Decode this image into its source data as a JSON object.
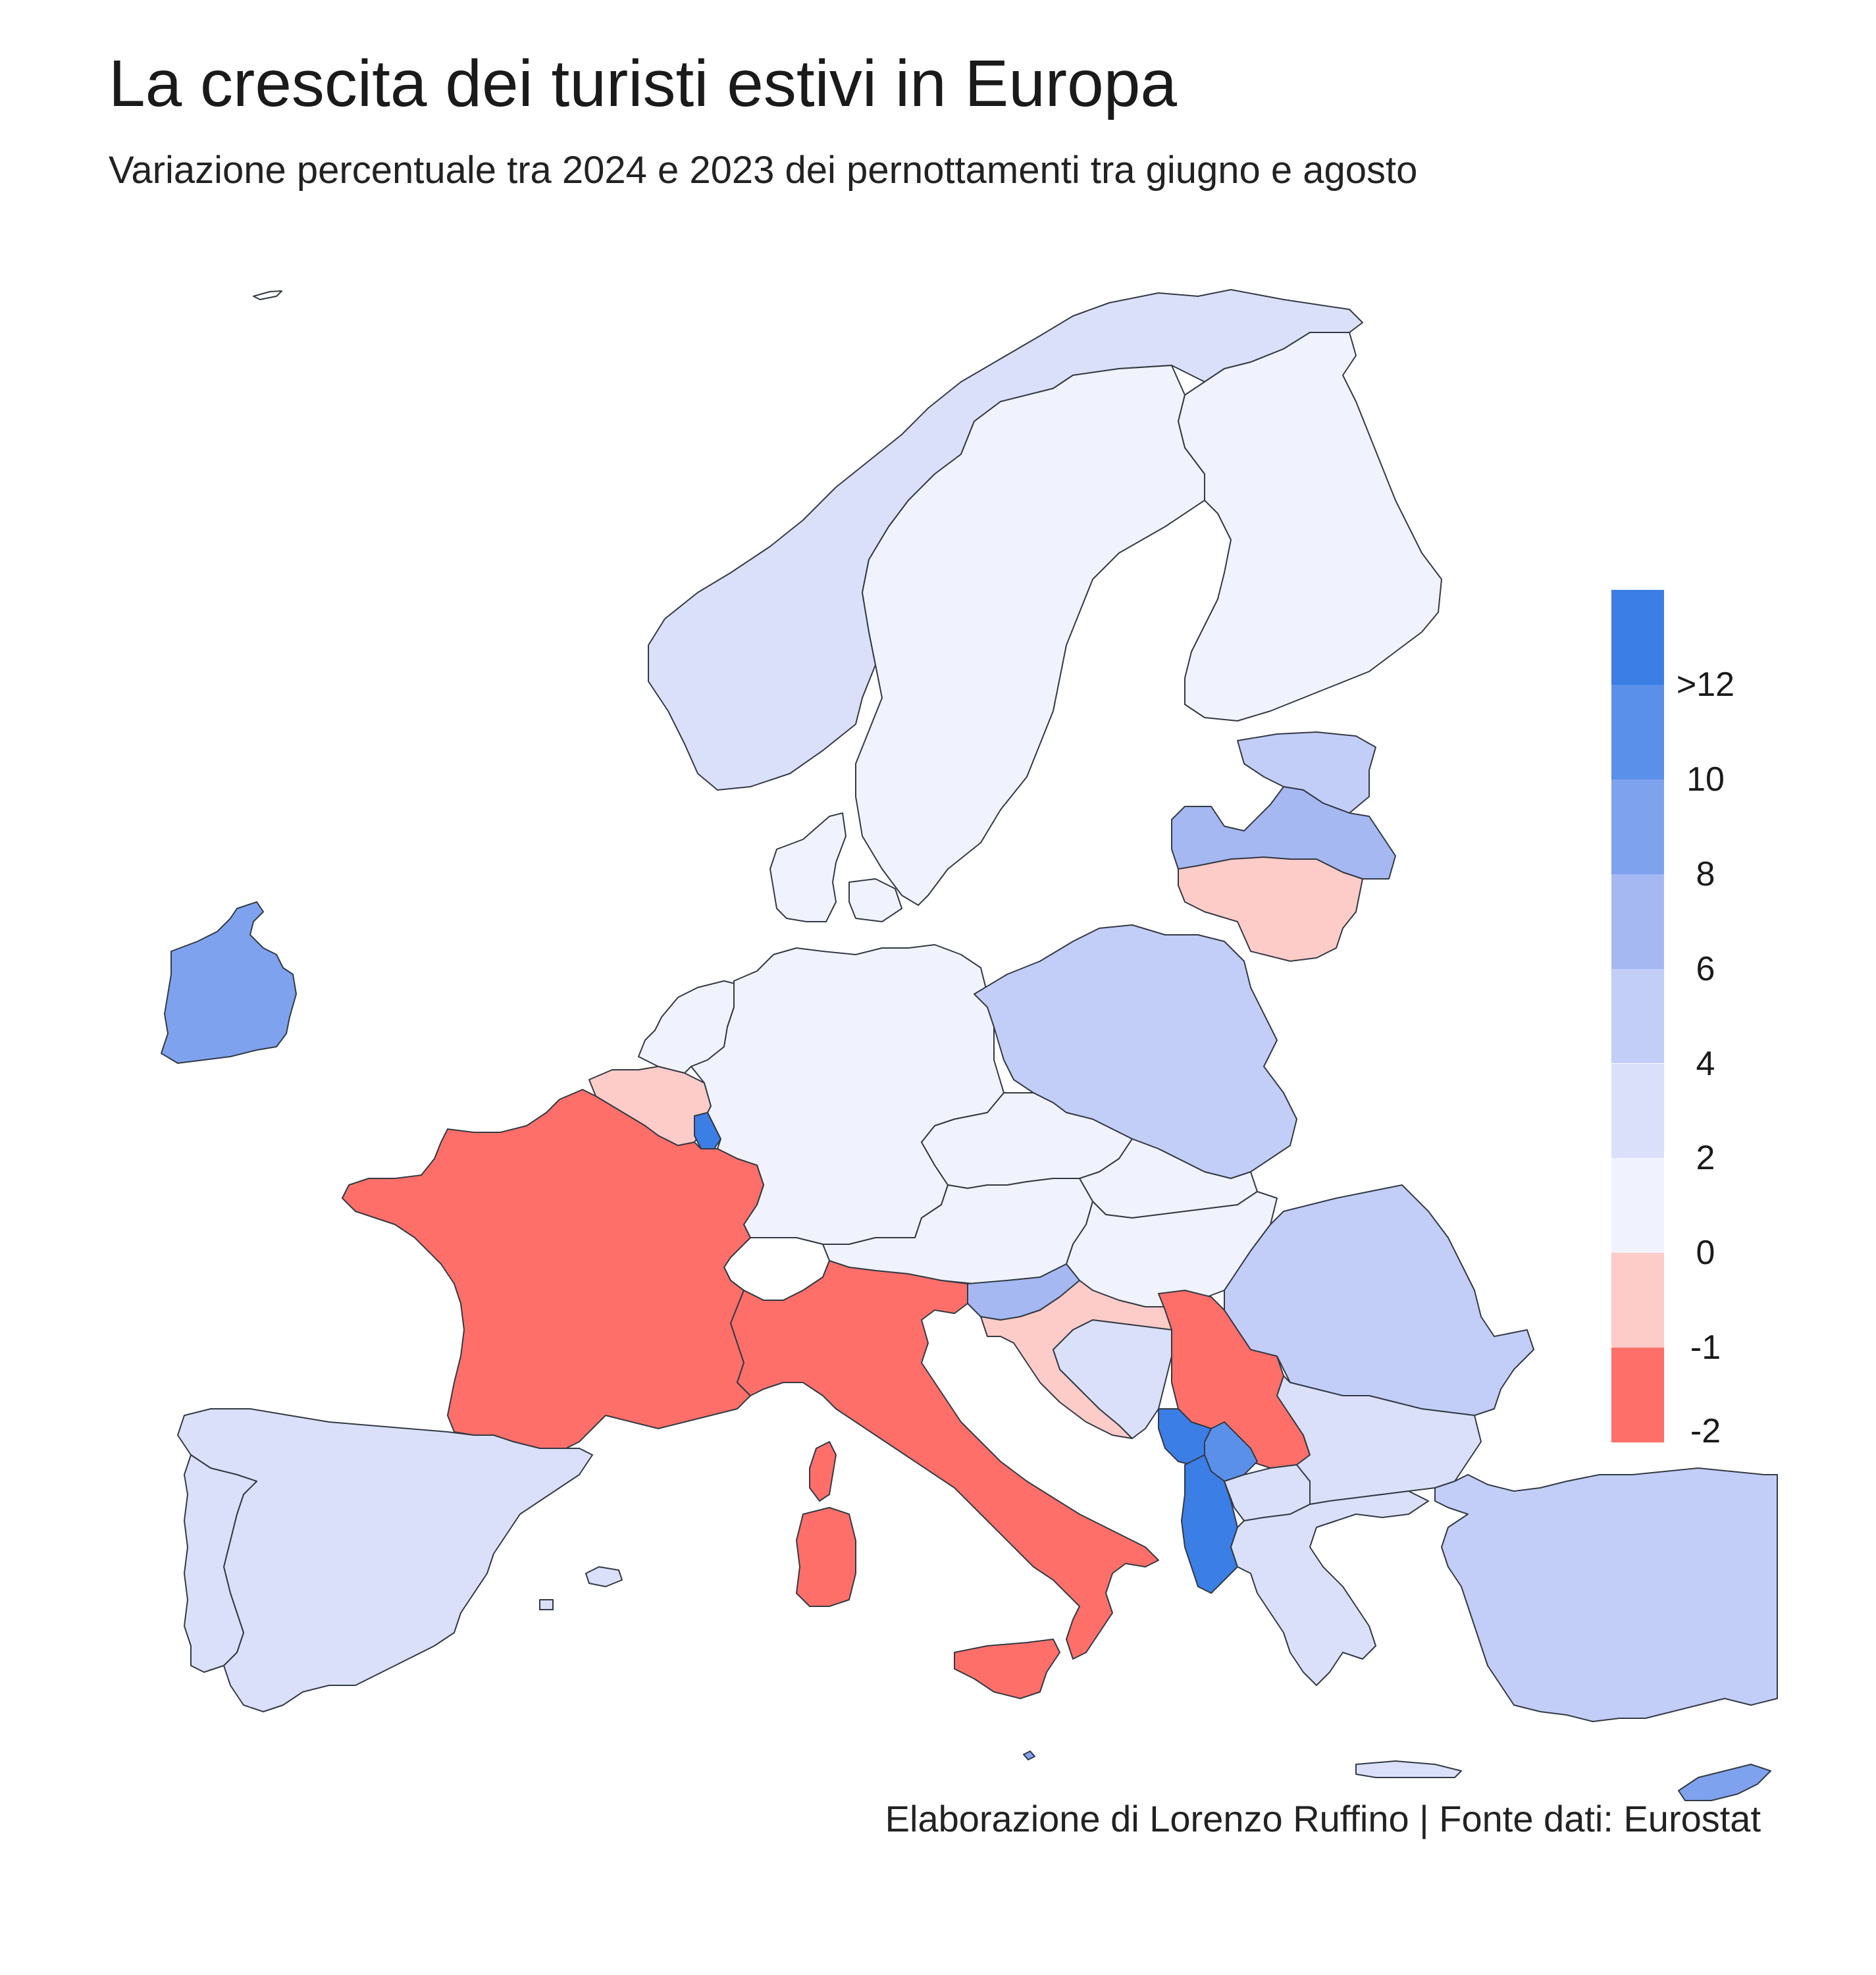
{
  "title": "La crescita dei turisti estivi in Europa",
  "subtitle": "Variazione percentuale tra 2024 e 2023 dei pernottamenti tra giugno e agosto",
  "credit": "Elaborazione di Lorenzo Ruffino | Fonte dati: Eurostat",
  "legend": {
    "steps": [
      {
        "label": ">12",
        "color": "#3b7ee6"
      },
      {
        "label": "10",
        "color": "#5a90ea"
      },
      {
        "label": "8",
        "color": "#7ea2ee"
      },
      {
        "label": "6",
        "color": "#a5b8f2"
      },
      {
        "label": "4",
        "color": "#c2cef7"
      },
      {
        "label": "2",
        "color": "#dbe0fa"
      },
      {
        "label": "0",
        "color": "#f0f3fd"
      },
      {
        "label": "-1",
        "color": "#fdcbc8"
      },
      {
        "label": "-2",
        "color": "#fe6f69"
      }
    ],
    "tick_labels": [
      ">12",
      "10",
      "8",
      "6",
      "4",
      "2",
      "0",
      "-1",
      "-2"
    ]
  },
  "countries": [
    {
      "id": "iceland",
      "color_class": "none"
    },
    {
      "id": "norway",
      "color_class": "#dbe0fa"
    },
    {
      "id": "sweden",
      "color_class": "#f0f3fd"
    },
    {
      "id": "finland",
      "color_class": "#f0f3fd"
    },
    {
      "id": "estonia",
      "color_class": "#c2cef7"
    },
    {
      "id": "latvia",
      "color_class": "#a5b8f2"
    },
    {
      "id": "lithuania",
      "color_class": "#fdcbc8"
    },
    {
      "id": "ireland",
      "color_class": "#7ea2ee"
    },
    {
      "id": "denmark",
      "color_class": "#f0f3fd"
    },
    {
      "id": "netherlands",
      "color_class": "#f0f3fd"
    },
    {
      "id": "belgium",
      "color_class": "#fdcbc8"
    },
    {
      "id": "luxembourg",
      "color_class": "#3b7ee6"
    },
    {
      "id": "germany",
      "color_class": "#f0f3fd"
    },
    {
      "id": "poland",
      "color_class": "#c2cef7"
    },
    {
      "id": "czechia",
      "color_class": "#f0f3fd"
    },
    {
      "id": "slovakia",
      "color_class": "#f0f3fd"
    },
    {
      "id": "austria",
      "color_class": "#f0f3fd"
    },
    {
      "id": "hungary",
      "color_class": "#f0f3fd"
    },
    {
      "id": "slovenia",
      "color_class": "#a5b8f2"
    },
    {
      "id": "croatia",
      "color_class": "#fdcbc8"
    },
    {
      "id": "serbia",
      "color_class": "#fe6f69"
    },
    {
      "id": "montenegro",
      "color_class": "#3b7ee6"
    },
    {
      "id": "kosovo",
      "color_class": "#5a90ea"
    },
    {
      "id": "north-macedonia",
      "color_class": "#dbe0fa"
    },
    {
      "id": "bosnia",
      "color_class": "#dbe0fa"
    },
    {
      "id": "albania",
      "color_class": "#3b7ee6"
    },
    {
      "id": "romania",
      "color_class": "#c2cef7"
    },
    {
      "id": "bulgaria",
      "color_class": "#dbe0fa"
    },
    {
      "id": "greece",
      "color_class": "#dbe0fa"
    },
    {
      "id": "turkey",
      "color_class": "#c2cef7"
    },
    {
      "id": "cyprus",
      "color_class": "#7ea2ee"
    },
    {
      "id": "malta",
      "color_class": "#7ea2ee"
    },
    {
      "id": "france",
      "color_class": "#fe6f69"
    },
    {
      "id": "italy",
      "color_class": "#fe6f69"
    },
    {
      "id": "spain",
      "color_class": "#dbe0fa"
    },
    {
      "id": "portugal",
      "color_class": "#dbe0fa"
    },
    {
      "id": "switzerland",
      "color_class": "none"
    }
  ]
}
